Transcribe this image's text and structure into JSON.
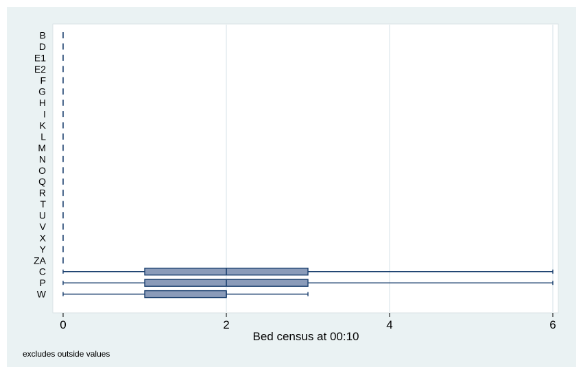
{
  "chart_data": {
    "type": "box",
    "orientation": "horizontal",
    "categories": [
      "B",
      "D",
      "E1",
      "E2",
      "F",
      "G",
      "H",
      "I",
      "K",
      "L",
      "M",
      "N",
      "O",
      "Q",
      "R",
      "T",
      "U",
      "V",
      "X",
      "Y",
      "ZA",
      "C",
      "P",
      "W"
    ],
    "boxes": [
      {
        "category": "B",
        "min": 0,
        "q1": 0,
        "median": 0,
        "q3": 0,
        "max": 0
      },
      {
        "category": "D",
        "min": 0,
        "q1": 0,
        "median": 0,
        "q3": 0,
        "max": 0
      },
      {
        "category": "E1",
        "min": 0,
        "q1": 0,
        "median": 0,
        "q3": 0,
        "max": 0
      },
      {
        "category": "E2",
        "min": 0,
        "q1": 0,
        "median": 0,
        "q3": 0,
        "max": 0
      },
      {
        "category": "F",
        "min": 0,
        "q1": 0,
        "median": 0,
        "q3": 0,
        "max": 0
      },
      {
        "category": "G",
        "min": 0,
        "q1": 0,
        "median": 0,
        "q3": 0,
        "max": 0
      },
      {
        "category": "H",
        "min": 0,
        "q1": 0,
        "median": 0,
        "q3": 0,
        "max": 0
      },
      {
        "category": "I",
        "min": 0,
        "q1": 0,
        "median": 0,
        "q3": 0,
        "max": 0
      },
      {
        "category": "K",
        "min": 0,
        "q1": 0,
        "median": 0,
        "q3": 0,
        "max": 0
      },
      {
        "category": "L",
        "min": 0,
        "q1": 0,
        "median": 0,
        "q3": 0,
        "max": 0
      },
      {
        "category": "M",
        "min": 0,
        "q1": 0,
        "median": 0,
        "q3": 0,
        "max": 0
      },
      {
        "category": "N",
        "min": 0,
        "q1": 0,
        "median": 0,
        "q3": 0,
        "max": 0
      },
      {
        "category": "O",
        "min": 0,
        "q1": 0,
        "median": 0,
        "q3": 0,
        "max": 0
      },
      {
        "category": "Q",
        "min": 0,
        "q1": 0,
        "median": 0,
        "q3": 0,
        "max": 0
      },
      {
        "category": "R",
        "min": 0,
        "q1": 0,
        "median": 0,
        "q3": 0,
        "max": 0
      },
      {
        "category": "T",
        "min": 0,
        "q1": 0,
        "median": 0,
        "q3": 0,
        "max": 0
      },
      {
        "category": "U",
        "min": 0,
        "q1": 0,
        "median": 0,
        "q3": 0,
        "max": 0
      },
      {
        "category": "V",
        "min": 0,
        "q1": 0,
        "median": 0,
        "q3": 0,
        "max": 0
      },
      {
        "category": "X",
        "min": 0,
        "q1": 0,
        "median": 0,
        "q3": 0,
        "max": 0
      },
      {
        "category": "Y",
        "min": 0,
        "q1": 0,
        "median": 0,
        "q3": 0,
        "max": 0
      },
      {
        "category": "ZA",
        "min": 0,
        "q1": 0,
        "median": 0,
        "q3": 0,
        "max": 0
      },
      {
        "category": "C",
        "min": 0,
        "q1": 1,
        "median": 2,
        "q3": 3,
        "max": 6
      },
      {
        "category": "P",
        "min": 0,
        "q1": 1,
        "median": 2,
        "q3": 3,
        "max": 6
      },
      {
        "category": "W",
        "min": 0,
        "q1": 1,
        "median": 2,
        "q3": 2,
        "max": 3
      }
    ],
    "xlabel": "Bed census at 00:10",
    "xlim": [
      -0.1,
      6.1
    ],
    "xticks": [
      0,
      2,
      4,
      6
    ],
    "grid": "vertical",
    "note": "excludes outside values",
    "colors": {
      "box_fill": "#8a9bb9",
      "box_stroke": "#1a3f6e",
      "background": "#eaf2f3",
      "plot_background": "#ffffff",
      "grid": "#e3ecef"
    }
  }
}
